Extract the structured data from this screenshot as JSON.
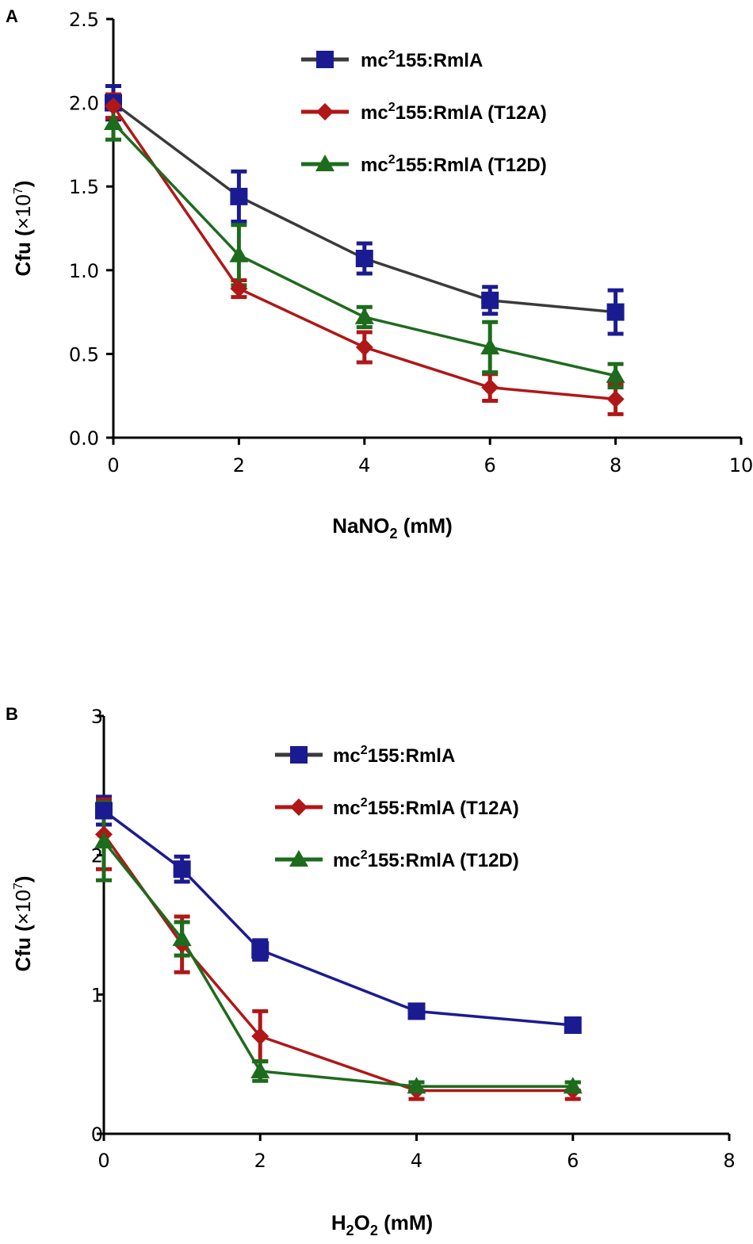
{
  "chart_data": [
    {
      "panel": "A",
      "type": "line",
      "xlabel": {
        "base": "NaNO",
        "sub": "2",
        "rest": " (mM)"
      },
      "ylabel": {
        "base": "Cfu (",
        "times": "×",
        "pow": "10",
        "sup": "7",
        "close": ")"
      },
      "xlim": [
        0,
        10
      ],
      "ylim": [
        0,
        2.5
      ],
      "xticks": [
        "0",
        "2",
        "4",
        "6",
        "8",
        "10"
      ],
      "yticks": [
        "0.0",
        "0.5",
        "1.0",
        "1.5",
        "2.0",
        "2.5"
      ],
      "series": [
        {
          "name": "mc²155:RmlA",
          "label": {
            "a": "mc",
            "sup": "2",
            "b": "155:RmlA"
          },
          "marker": "square",
          "color": "#1b1b91",
          "line_color": "#3a3a3a",
          "x": [
            0,
            2,
            4,
            6,
            8
          ],
          "y": [
            2.0,
            1.44,
            1.07,
            0.82,
            0.75
          ],
          "err": [
            0.1,
            0.15,
            0.09,
            0.08,
            0.13
          ]
        },
        {
          "name": "mc²155:RmlA (T12A)",
          "label": {
            "a": "mc",
            "sup": "2",
            "b": "155:RmlA (T12A)"
          },
          "marker": "diamond",
          "color": "#b01717",
          "line_color": "#b01717",
          "x": [
            0,
            2,
            4,
            6,
            8
          ],
          "y": [
            1.98,
            0.89,
            0.54,
            0.3,
            0.23
          ],
          "err": [
            0.07,
            0.05,
            0.09,
            0.08,
            0.09
          ]
        },
        {
          "name": "mc²155:RmlA (T12D)",
          "label": {
            "a": "mc",
            "sup": "2",
            "b": "155:RmlA (T12D)"
          },
          "marker": "triangle",
          "color": "#1d6b1d",
          "line_color": "#1d6b1d",
          "x": [
            0,
            2,
            4,
            6,
            8
          ],
          "y": [
            1.88,
            1.09,
            0.72,
            0.54,
            0.37
          ],
          "err": [
            0.1,
            0.18,
            0.06,
            0.15,
            0.07
          ]
        }
      ]
    },
    {
      "panel": "B",
      "type": "line",
      "xlabel": {
        "base": "H",
        "sub": "2",
        "mid": "O",
        "sub2": "2",
        "rest": " (mM)"
      },
      "ylabel": {
        "base": "Cfu (",
        "times": "×",
        "pow": "10",
        "sup": "7",
        "close": ")"
      },
      "xlim": [
        0,
        8
      ],
      "ylim": [
        0,
        3
      ],
      "xticks": [
        "0",
        "2",
        "4",
        "6",
        "8"
      ],
      "yticks": [
        "0",
        "1",
        "2",
        "3"
      ],
      "series": [
        {
          "name": "mc²155:RmlA",
          "label": {
            "a": "mc",
            "sup": "2",
            "b": "155:RmlA"
          },
          "marker": "square",
          "color": "#1b1b91",
          "line_color": "#1b1b91",
          "legend_line_color": "#3a3a3a",
          "x": [
            0,
            1,
            2,
            4,
            6
          ],
          "y": [
            2.32,
            1.9,
            1.32,
            0.88,
            0.78
          ],
          "err": [
            0.1,
            0.09,
            0.07,
            0.04,
            0.04
          ]
        },
        {
          "name": "mc²155:RmlA (T12A)",
          "label": {
            "a": "mc",
            "sup": "2",
            "b": "155:RmlA (T12A)"
          },
          "marker": "diamond",
          "color": "#b01717",
          "line_color": "#b01717",
          "x": [
            0,
            1,
            2,
            4,
            6
          ],
          "y": [
            2.15,
            1.36,
            0.7,
            0.31,
            0.31
          ],
          "err": [
            0.25,
            0.2,
            0.18,
            0.06,
            0.06
          ]
        },
        {
          "name": "mc²155:RmlA (T12D)",
          "label": {
            "a": "mc",
            "sup": "2",
            "b": "155:RmlA (T12D)"
          },
          "marker": "triangle",
          "color": "#1d6b1d",
          "line_color": "#1d6b1d",
          "x": [
            0,
            1,
            2,
            4,
            6
          ],
          "y": [
            2.1,
            1.4,
            0.45,
            0.34,
            0.34
          ],
          "err": [
            0.28,
            0.12,
            0.07,
            0.03,
            0.03
          ]
        }
      ]
    }
  ]
}
